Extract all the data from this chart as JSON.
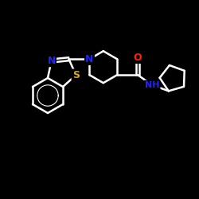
{
  "background": "#000000",
  "bond_color": "#ffffff",
  "S_color": "#ddaa00",
  "N_color": "#2222ff",
  "O_color": "#ff2200",
  "fs": 9,
  "lw": 1.8,
  "dpi": 100,
  "figsize": [
    2.5,
    2.5
  ],
  "xlim": [
    -1.0,
    11.5
  ],
  "ylim": [
    -1.0,
    11.5
  ]
}
